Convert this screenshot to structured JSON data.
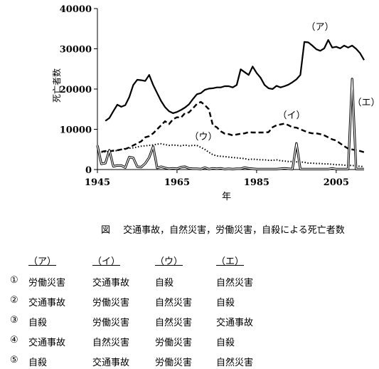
{
  "chart_data": {
    "type": "line",
    "ylabel": "死亡者数",
    "xlabel": "年",
    "ylim": [
      0,
      40000
    ],
    "xlim": [
      1945,
      2012
    ],
    "yticks": [
      "0",
      "10000",
      "20000",
      "30000",
      "40000"
    ],
    "xticks": [
      "1945",
      "1965",
      "1985",
      "2005"
    ],
    "grid": false,
    "series": [
      {
        "name": "（ア）",
        "style": "solid-thick",
        "x": [
          1947,
          1948,
          1949,
          1950,
          1951,
          1952,
          1953,
          1954,
          1955,
          1956,
          1957,
          1958,
          1959,
          1960,
          1961,
          1962,
          1963,
          1964,
          1965,
          1966,
          1967,
          1968,
          1969,
          1970,
          1971,
          1972,
          1973,
          1974,
          1975,
          1976,
          1977,
          1978,
          1979,
          1980,
          1981,
          1982,
          1983,
          1984,
          1985,
          1986,
          1987,
          1988,
          1989,
          1990,
          1991,
          1992,
          1993,
          1994,
          1995,
          1996,
          1997,
          1998,
          1999,
          2000,
          2001,
          2002,
          2003,
          2004,
          2005,
          2006,
          2007,
          2008,
          2009,
          2010,
          2011,
          2012
        ],
        "values": [
          12100,
          12800,
          14500,
          16100,
          15600,
          16000,
          18000,
          21000,
          22300,
          22200,
          22000,
          23500,
          21000,
          19000,
          17000,
          15500,
          14500,
          14000,
          14300,
          14800,
          15400,
          16200,
          17500,
          18700,
          19000,
          19800,
          20100,
          20200,
          20400,
          20400,
          20700,
          20700,
          20400,
          21000,
          24900,
          24200,
          23500,
          25600,
          24000,
          22800,
          21000,
          20200,
          20000,
          20800,
          20400,
          20700,
          21100,
          21700,
          22400,
          23500,
          31700,
          31600,
          30800,
          29900,
          29500,
          30100,
          32200,
          30300,
          30500,
          30100,
          30800,
          30300,
          30800,
          30000,
          28900,
          27200
        ]
      },
      {
        "name": "（イ）",
        "style": "dashed-thick",
        "x": [
          1946,
          1947,
          1948,
          1949,
          1950,
          1951,
          1952,
          1953,
          1954,
          1955,
          1956,
          1957,
          1958,
          1959,
          1960,
          1961,
          1962,
          1963,
          1964,
          1965,
          1966,
          1967,
          1968,
          1969,
          1970,
          1971,
          1972,
          1973,
          1974,
          1975,
          1976,
          1977,
          1978,
          1979,
          1980,
          1981,
          1982,
          1983,
          1984,
          1985,
          1986,
          1987,
          1988,
          1989,
          1990,
          1991,
          1992,
          1993,
          1994,
          1995,
          1996,
          1997,
          1998,
          1999,
          2000,
          2001,
          2002,
          2003,
          2004,
          2005,
          2006,
          2007,
          2008,
          2009,
          2010,
          2011,
          2012
        ],
        "values": [
          4400,
          4600,
          4500,
          4700,
          4800,
          5000,
          5100,
          5500,
          6000,
          6500,
          7000,
          8000,
          8300,
          9000,
          10000,
          11000,
          12000,
          11300,
          12500,
          13000,
          12900,
          14000,
          14200,
          15200,
          16300,
          16800,
          16000,
          15000,
          11000,
          10500,
          9500,
          8900,
          8800,
          8500,
          8700,
          8900,
          9000,
          9300,
          9200,
          9200,
          9200,
          9200,
          9300,
          10500,
          11000,
          11200,
          11400,
          11000,
          10500,
          10400,
          10000,
          9600,
          9200,
          9000,
          9000,
          8800,
          8500,
          8000,
          7500,
          7200,
          6500,
          5800,
          5200,
          5000,
          4800,
          4600,
          4300
        ]
      },
      {
        "name": "（ウ）",
        "style": "dotted",
        "x": [
          1946,
          1947,
          1948,
          1949,
          1950,
          1951,
          1952,
          1953,
          1954,
          1955,
          1956,
          1957,
          1958,
          1959,
          1960,
          1961,
          1962,
          1963,
          1964,
          1965,
          1966,
          1967,
          1968,
          1969,
          1970,
          1971,
          1972,
          1973,
          1974,
          1975,
          1976,
          1977,
          1978,
          1979,
          1980,
          1981,
          1982,
          1983,
          1984,
          1985,
          1986,
          1987,
          1988,
          1989,
          1990,
          1991,
          1992,
          1993,
          1994,
          1995,
          1996,
          1997,
          1998,
          1999,
          2000,
          2001,
          2002,
          2003,
          2004,
          2005,
          2006,
          2007,
          2008,
          2009,
          2010,
          2011,
          2012
        ],
        "values": [
          4300,
          4400,
          4500,
          4600,
          4700,
          5000,
          5200,
          5300,
          5400,
          5600,
          5800,
          5900,
          6000,
          6100,
          6300,
          6400,
          6200,
          6000,
          6100,
          6000,
          5900,
          6100,
          5900,
          6000,
          6000,
          5500,
          5000,
          4300,
          3700,
          3400,
          3300,
          3200,
          3100,
          3000,
          2900,
          2800,
          2700,
          2500,
          2600,
          2500,
          2400,
          2400,
          2300,
          2300,
          2400,
          2200,
          2100,
          2000,
          2000,
          1900,
          1900,
          1800,
          1600,
          1600,
          1500,
          1500,
          1400,
          1400,
          1300,
          1200,
          1200,
          1100,
          1000,
          1000,
          900,
          800,
          700
        ]
      },
      {
        "name": "（エ）",
        "style": "double-thin",
        "x": [
          1945,
          1946,
          1947,
          1948,
          1949,
          1950,
          1951,
          1952,
          1953,
          1954,
          1955,
          1956,
          1957,
          1958,
          1959,
          1960,
          1961,
          1962,
          1963,
          1964,
          1965,
          1966,
          1967,
          1968,
          1969,
          1970,
          1971,
          1972,
          1973,
          1974,
          1975,
          1976,
          1977,
          1978,
          1979,
          1980,
          1981,
          1982,
          1983,
          1984,
          1985,
          1986,
          1987,
          1988,
          1989,
          1990,
          1991,
          1992,
          1993,
          1994,
          1995,
          1996,
          1997,
          1998,
          1999,
          2000,
          2001,
          2002,
          2003,
          2004,
          2005,
          2006,
          2007,
          2008,
          2009,
          2010,
          2011,
          2012
        ],
        "values": [
          6000,
          1400,
          1600,
          4800,
          800,
          1000,
          1000,
          500,
          3100,
          2900,
          700,
          600,
          1500,
          3000,
          5700,
          400,
          700,
          400,
          200,
          300,
          200,
          600,
          700,
          300,
          200,
          200,
          100,
          500,
          100,
          300,
          200,
          300,
          100,
          200,
          100,
          200,
          200,
          500,
          300,
          200,
          100,
          100,
          100,
          100,
          100,
          100,
          200,
          300,
          200,
          100,
          6500,
          100,
          100,
          100,
          100,
          100,
          100,
          100,
          100,
          300,
          100,
          100,
          100,
          100,
          22500,
          100,
          100,
          100
        ]
      }
    ],
    "annotations": [
      "（ア）",
      "（イ）",
      "（ウ）",
      "（エ）"
    ]
  },
  "caption": {
    "label": "図",
    "text": "交通事故，自然災害，労働災害，自殺による死亡者数"
  },
  "choices": {
    "headers": [
      "（ア）",
      "（イ）",
      "（ウ）",
      "（エ）"
    ],
    "rows": [
      {
        "num": "①",
        "cells": [
          "労働災害",
          "交通事故",
          "自殺",
          "自然災害"
        ]
      },
      {
        "num": "②",
        "cells": [
          "交通事故",
          "労働災害",
          "自然災害",
          "自殺"
        ]
      },
      {
        "num": "③",
        "cells": [
          "自殺",
          "労働災害",
          "自然災害",
          "交通事故"
        ]
      },
      {
        "num": "④",
        "cells": [
          "交通事故",
          "自然災害",
          "労働災害",
          "自殺"
        ]
      },
      {
        "num": "⑤",
        "cells": [
          "自殺",
          "交通事故",
          "労働災害",
          "自然災害"
        ]
      }
    ]
  }
}
